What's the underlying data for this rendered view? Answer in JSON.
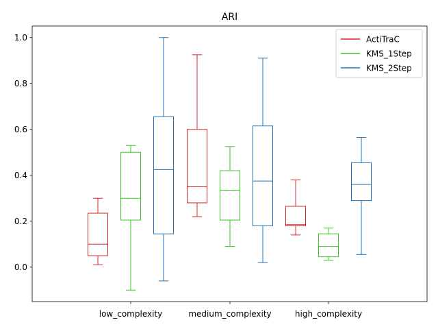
{
  "chart_data": {
    "type": "box",
    "title": "ARI",
    "xlabel": "",
    "ylabel": "",
    "ylim": [
      -0.15,
      1.05
    ],
    "yticks": [
      0.0,
      0.2,
      0.4,
      0.6,
      0.8,
      1.0
    ],
    "ytick_labels": [
      "0.0",
      "0.2",
      "0.4",
      "0.6",
      "0.8",
      "1.0"
    ],
    "grid": false,
    "legend_position": "top-right",
    "categories": [
      "low_complexity",
      "medium_complexity",
      "high_complexity"
    ],
    "series": [
      {
        "name": "ActiTraC",
        "color": "#d62728",
        "boxes": [
          {
            "whisker_low": 0.01,
            "q1": 0.05,
            "median": 0.1,
            "q3": 0.235,
            "whisker_high": 0.3
          },
          {
            "whisker_low": 0.22,
            "q1": 0.28,
            "median": 0.35,
            "q3": 0.6,
            "whisker_high": 0.925
          },
          {
            "whisker_low": 0.14,
            "q1": 0.18,
            "median": 0.185,
            "q3": 0.265,
            "whisker_high": 0.38
          }
        ]
      },
      {
        "name": "KMS_1Step",
        "color": "#3fc52a",
        "boxes": [
          {
            "whisker_low": -0.1,
            "q1": 0.205,
            "median": 0.3,
            "q3": 0.5,
            "whisker_high": 0.53
          },
          {
            "whisker_low": 0.09,
            "q1": 0.205,
            "median": 0.335,
            "q3": 0.42,
            "whisker_high": 0.525
          },
          {
            "whisker_low": 0.03,
            "q1": 0.045,
            "median": 0.09,
            "q3": 0.145,
            "whisker_high": 0.17
          }
        ]
      },
      {
        "name": "KMS_2Step",
        "color": "#2573b4",
        "boxes": [
          {
            "whisker_low": -0.06,
            "q1": 0.145,
            "median": 0.425,
            "q3": 0.655,
            "whisker_high": 1.0
          },
          {
            "whisker_low": 0.02,
            "q1": 0.18,
            "median": 0.375,
            "q3": 0.615,
            "whisker_high": 0.91
          },
          {
            "whisker_low": 0.055,
            "q1": 0.29,
            "median": 0.36,
            "q3": 0.455,
            "whisker_high": 0.565
          }
        ]
      }
    ]
  }
}
